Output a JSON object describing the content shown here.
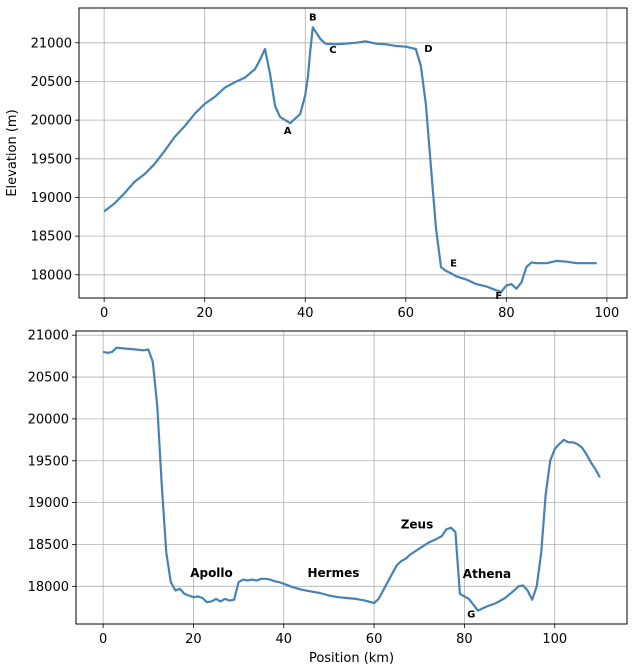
{
  "chart_data": [
    {
      "type": "line",
      "title": "",
      "xlabel": "",
      "ylabel": "Elevation (m)",
      "xlim": [
        -5,
        104
      ],
      "ylim": [
        17700,
        21450
      ],
      "xticks": [
        0,
        20,
        40,
        60,
        80,
        100
      ],
      "yticks": [
        18000,
        18500,
        19000,
        19500,
        20000,
        20500,
        21000
      ],
      "grid": true,
      "line_color": "#4682b4",
      "x": [
        0,
        2,
        4,
        6,
        8,
        10,
        12,
        14,
        16,
        18,
        20,
        22,
        24,
        26,
        28,
        30,
        31,
        32,
        33,
        34,
        35,
        36,
        37,
        38,
        39,
        40,
        40.5,
        41,
        41.5,
        42,
        43,
        44,
        46,
        48,
        50,
        52,
        54,
        56,
        58,
        60,
        62,
        63,
        64,
        65,
        66,
        67,
        68,
        69,
        70,
        72,
        74,
        76,
        78,
        79,
        80,
        81,
        82,
        83,
        84,
        85,
        86,
        88,
        90,
        92,
        94,
        96,
        98
      ],
      "y": [
        18820,
        18920,
        19050,
        19200,
        19300,
        19430,
        19600,
        19780,
        19920,
        20080,
        20210,
        20300,
        20420,
        20490,
        20550,
        20660,
        20780,
        20920,
        20600,
        20180,
        20040,
        20000,
        19960,
        20020,
        20080,
        20320,
        20550,
        20900,
        21200,
        21150,
        21050,
        20990,
        20980,
        20990,
        21000,
        21020,
        20990,
        20980,
        20960,
        20950,
        20920,
        20700,
        20200,
        19400,
        18600,
        18100,
        18050,
        18020,
        17980,
        17940,
        17880,
        17850,
        17800,
        17780,
        17860,
        17880,
        17820,
        17900,
        18100,
        18160,
        18150,
        18150,
        18180,
        18170,
        18150,
        18150,
        18150
      ],
      "annotations": [
        {
          "text": "A",
          "x": 36.5,
          "y": 19820
        },
        {
          "text": "B",
          "x": 41.5,
          "y": 21290
        },
        {
          "text": "C",
          "x": 45.5,
          "y": 20870
        },
        {
          "text": "D",
          "x": 64.5,
          "y": 20880
        },
        {
          "text": "E",
          "x": 69.5,
          "y": 18110
        },
        {
          "text": "F",
          "x": 78.5,
          "y": 17690
        }
      ]
    },
    {
      "type": "line",
      "title": "",
      "xlabel": "Position (km)",
      "ylabel": "",
      "xlim": [
        -6,
        116
      ],
      "ylim": [
        17550,
        21050
      ],
      "xticks": [
        0,
        20,
        40,
        60,
        80,
        100
      ],
      "yticks": [
        18000,
        18500,
        19000,
        19500,
        20000,
        20500,
        21000
      ],
      "grid": true,
      "line_color": "#4682b4",
      "x": [
        0,
        1,
        2,
        3,
        5,
        7,
        9,
        10,
        11,
        12,
        13,
        14,
        15,
        16,
        17,
        18,
        19,
        20,
        21,
        22,
        23,
        24,
        25,
        26,
        27,
        28,
        29,
        30,
        31,
        32,
        33,
        34,
        35,
        36,
        37,
        38,
        39,
        40,
        42,
        44,
        46,
        48,
        50,
        52,
        54,
        56,
        58,
        60,
        61,
        62,
        63,
        64,
        65,
        66,
        67,
        68,
        70,
        72,
        74,
        75,
        76,
        77,
        78,
        79,
        80,
        81,
        82,
        83,
        85,
        87,
        89,
        91,
        92,
        93,
        94,
        95,
        96,
        97,
        98,
        99,
        100,
        101,
        102,
        103,
        104,
        105,
        106,
        107,
        108,
        109,
        110
      ],
      "y": [
        20800,
        20790,
        20800,
        20850,
        20840,
        20830,
        20820,
        20830,
        20680,
        20150,
        19200,
        18400,
        18050,
        17950,
        17970,
        17910,
        17890,
        17870,
        17880,
        17860,
        17810,
        17820,
        17850,
        17820,
        17850,
        17830,
        17840,
        18050,
        18080,
        18070,
        18080,
        18070,
        18090,
        18090,
        18080,
        18060,
        18050,
        18030,
        17990,
        17960,
        17940,
        17920,
        17890,
        17870,
        17860,
        17850,
        17830,
        17800,
        17850,
        17950,
        18050,
        18150,
        18250,
        18300,
        18330,
        18380,
        18450,
        18520,
        18570,
        18600,
        18680,
        18700,
        18650,
        17910,
        17880,
        17850,
        17780,
        17710,
        17760,
        17800,
        17860,
        17950,
        18000,
        18010,
        17950,
        17840,
        18000,
        18400,
        19100,
        19500,
        19640,
        19700,
        19750,
        19720,
        19720,
        19700,
        19660,
        19580,
        19480,
        19400,
        19300
      ],
      "annotations": [
        {
          "text": "Apollo",
          "x": 24,
          "y": 18110
        },
        {
          "text": "Hermes",
          "x": 51,
          "y": 18110
        },
        {
          "text": "Zeus",
          "x": 69.5,
          "y": 18690
        },
        {
          "text": "Athena",
          "x": 85,
          "y": 18100
        },
        {
          "text": "G",
          "x": 81.5,
          "y": 17630
        }
      ]
    }
  ]
}
